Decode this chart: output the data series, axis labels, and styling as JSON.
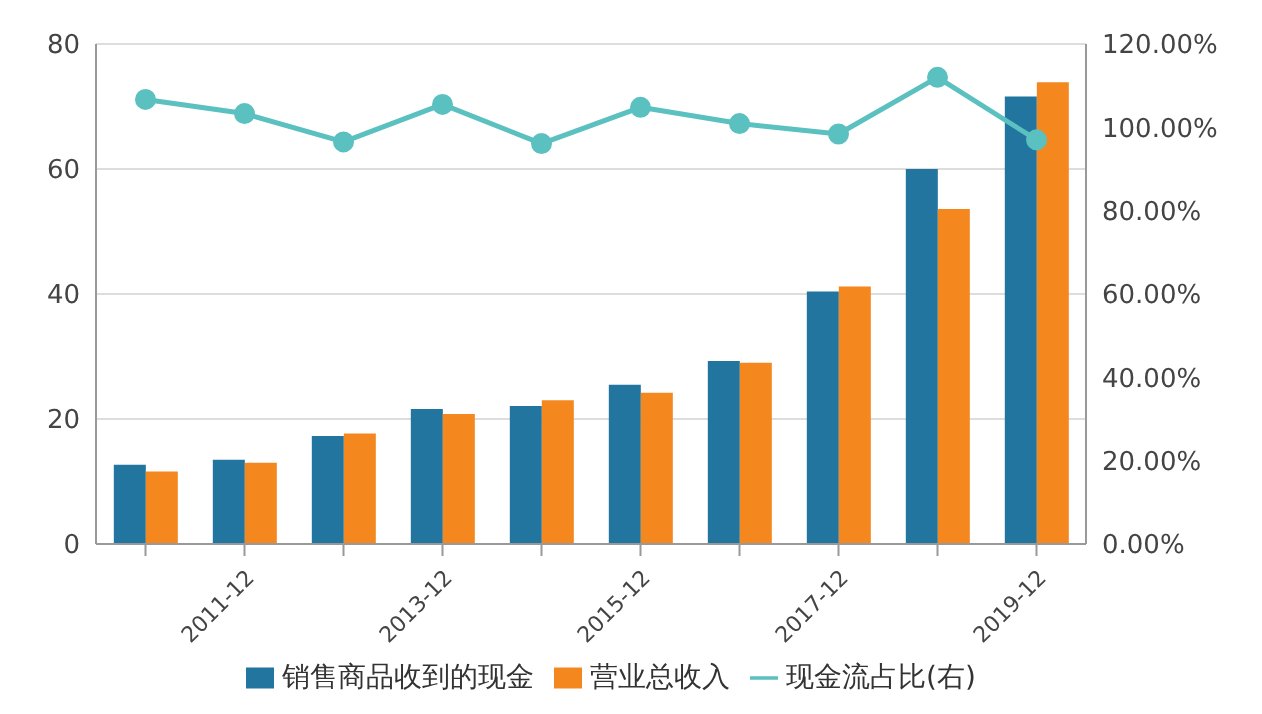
{
  "chart_data": {
    "type": "bar",
    "categories": [
      null,
      "2011-12",
      null,
      "2013-12",
      null,
      "2015-12",
      null,
      "2017-12",
      null,
      "2019-12"
    ],
    "series": [
      {
        "name": "销售商品收到的现金",
        "color": "#21759f",
        "values": [
          12.7,
          13.5,
          17.3,
          21.6,
          22.1,
          25.5,
          29.3,
          40.4,
          60.0,
          71.6
        ]
      },
      {
        "name": "营业总收入",
        "color": "#f5871f",
        "values": [
          11.6,
          13.0,
          17.7,
          20.8,
          23.0,
          24.2,
          29.0,
          41.2,
          53.6,
          73.9
        ]
      },
      {
        "name": "现金流占比(右)",
        "type": "line",
        "axis": "y2",
        "color": "#5bc0c0",
        "marker": "circle",
        "values": [
          106.7,
          103.3,
          96.5,
          105.5,
          96.1,
          104.8,
          100.9,
          98.4,
          112.0,
          97.0
        ]
      }
    ],
    "ylim": [
      0,
      80
    ],
    "yticks": [
      0,
      20,
      40,
      60,
      80
    ],
    "y2lim": [
      0,
      120
    ],
    "y2ticks": [
      {
        "value": 0,
        "label": "0.00%"
      },
      {
        "value": 20,
        "label": "20.00%"
      },
      {
        "value": 40,
        "label": "40.00%"
      },
      {
        "value": 60,
        "label": "60.00%"
      },
      {
        "value": 80,
        "label": "80.00%"
      },
      {
        "value": 100,
        "label": "100.00%"
      },
      {
        "value": 120,
        "label": "120.00%"
      }
    ],
    "grid": "y",
    "legend": "bottom"
  }
}
